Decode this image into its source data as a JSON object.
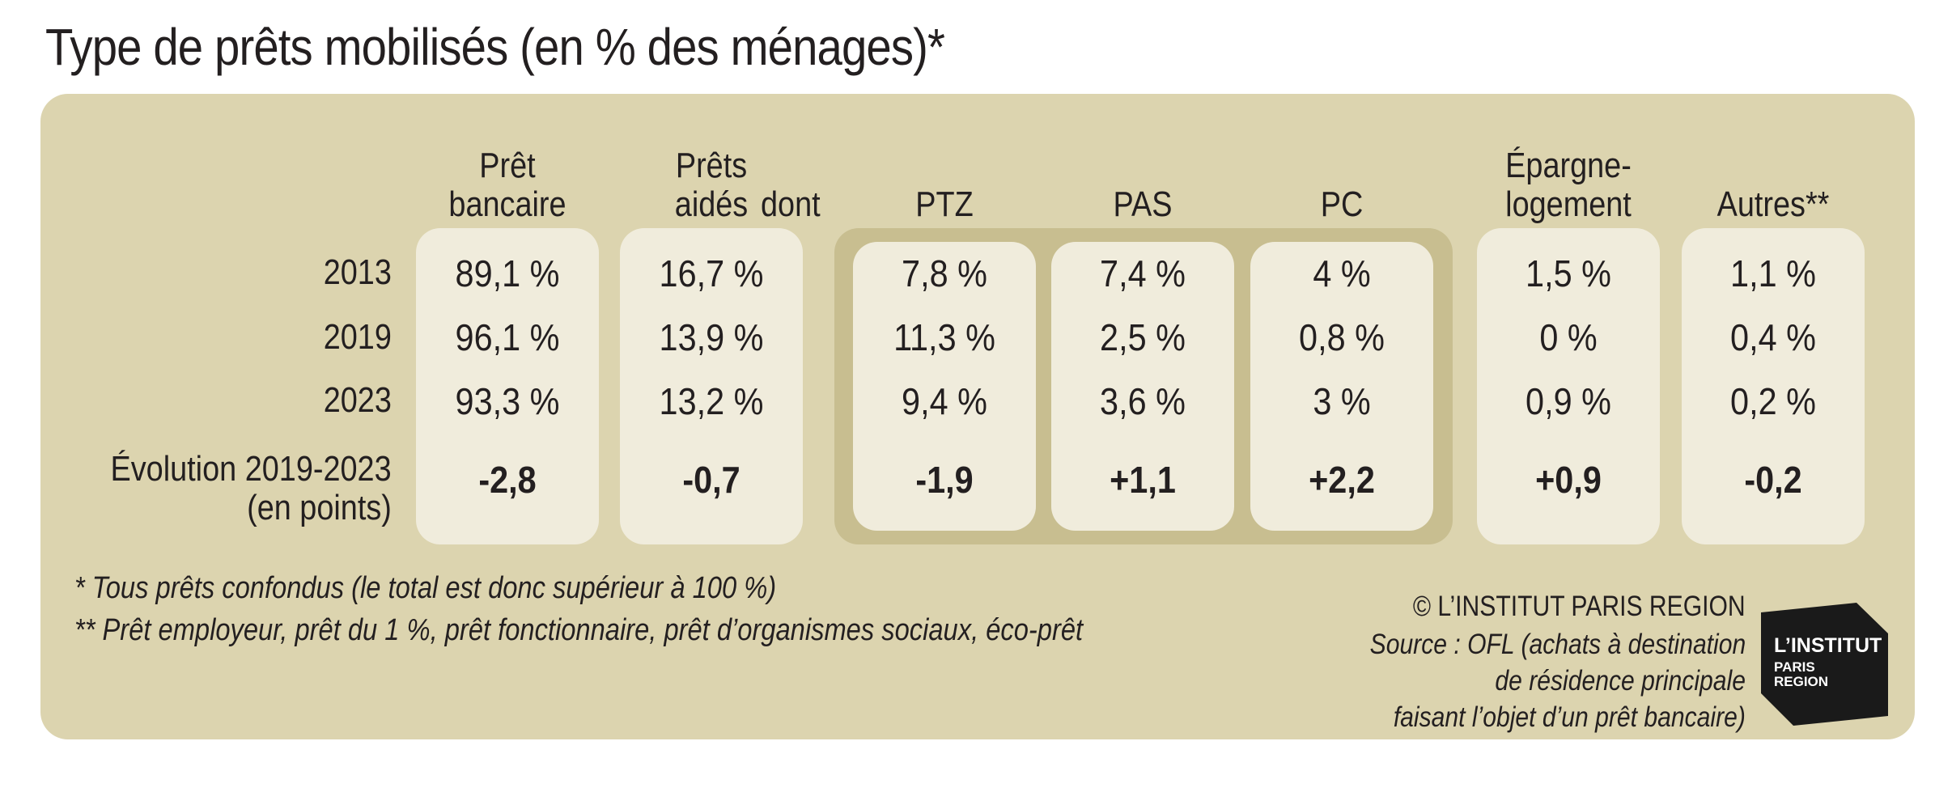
{
  "title": "Type de prêts mobilisés (en % des ménages)*",
  "chart_data": {
    "type": "table",
    "columns": [
      {
        "key": "bancaire",
        "label_lines": [
          "Prêt",
          "bancaire"
        ],
        "values": [
          "89,1 %",
          "96,1 %",
          "93,3 %"
        ],
        "evolution": "-2,8"
      },
      {
        "key": "aides",
        "label_lines": [
          "Prêts",
          "aidés"
        ],
        "values": [
          "16,7 %",
          "13,9 %",
          "13,2 %"
        ],
        "evolution": "-0,7"
      },
      {
        "key": "ptz",
        "label_lines": [
          "PTZ"
        ],
        "values": [
          "7,8 %",
          "11,3 %",
          "9,4 %"
        ],
        "evolution": "-1,9"
      },
      {
        "key": "pas",
        "label_lines": [
          "PAS"
        ],
        "values": [
          "7,4 %",
          "2,5 %",
          "3,6 %"
        ],
        "evolution": "+1,1"
      },
      {
        "key": "pc",
        "label_lines": [
          "PC"
        ],
        "values": [
          "4 %",
          "0,8 %",
          "3 %"
        ],
        "evolution": "+2,2"
      },
      {
        "key": "epargne",
        "label_lines": [
          "Épargne-",
          "logement"
        ],
        "values": [
          "1,5 %",
          "0 %",
          "0,9 %"
        ],
        "evolution": "+0,9"
      },
      {
        "key": "autres",
        "label_lines": [
          "Autres**"
        ],
        "values": [
          "1,1 %",
          "0,4 %",
          "0,2 %"
        ],
        "evolution": "-0,2"
      }
    ],
    "dont_label": "dont",
    "years": [
      "2013",
      "2019",
      "2023"
    ],
    "evolution_label_lines": [
      "Évolution 2019-2023",
      "(en points)"
    ]
  },
  "footnotes": [
    "* Tous prêts confondus (le total est donc supérieur à 100 %)",
    "** Prêt employeur, prêt du 1 %, prêt fonctionnaire, prêt d’organismes sociaux, éco-prêt"
  ],
  "copyright": "© L’INSTITUT PARIS REGION",
  "source_lines": [
    "Source : OFL (achats à destination",
    "de résidence principale",
    "faisant l’objet d’un prêt bancaire)"
  ],
  "logo": {
    "line1": "L’INSTITUT",
    "line2": "PARIS",
    "line3": "REGION"
  },
  "colors": {
    "panel": "#dcd4af",
    "pill": "#f0ecdc",
    "group": "#c8be90",
    "text": "#231f20",
    "logo": "#1a1a1a"
  }
}
